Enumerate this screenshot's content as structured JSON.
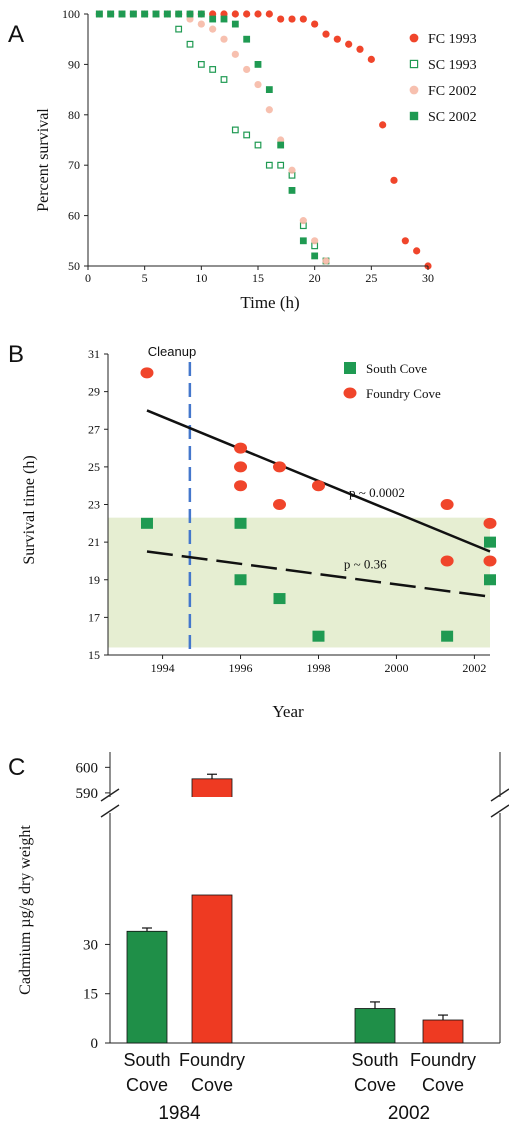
{
  "colors": {
    "fc_red": "#f0452b",
    "fc_light": "#f6b9a6",
    "sc_green": "#1f9a52",
    "band_green": "#e6eed2",
    "cleanup_blue": "#4477cc",
    "bar_green": "#1f8f48",
    "bar_red": "#ee3a22"
  },
  "chart_data": [
    {
      "panel": "A",
      "type": "scatter",
      "xlabel": "Time (h)",
      "ylabel": "Percent survival",
      "xlim": [
        0,
        30
      ],
      "ylim": [
        50,
        100
      ],
      "xticks": [
        0,
        5,
        10,
        15,
        20,
        25,
        30
      ],
      "yticks": [
        50,
        60,
        70,
        80,
        90,
        100
      ],
      "legend_position": "top-right",
      "series": [
        {
          "name": "FC 1993",
          "marker": "filled-circle",
          "points": [
            [
              1,
              100
            ],
            [
              2,
              100
            ],
            [
              3,
              100
            ],
            [
              4,
              100
            ],
            [
              5,
              100
            ],
            [
              6,
              100
            ],
            [
              7,
              100
            ],
            [
              8,
              100
            ],
            [
              9,
              100
            ],
            [
              10,
              100
            ],
            [
              11,
              100
            ],
            [
              12,
              100
            ],
            [
              13,
              100
            ],
            [
              14,
              100
            ],
            [
              15,
              100
            ],
            [
              16,
              100
            ],
            [
              17,
              99
            ],
            [
              18,
              99
            ],
            [
              19,
              99
            ],
            [
              20,
              98
            ],
            [
              21,
              96
            ],
            [
              22,
              95
            ],
            [
              23,
              94
            ],
            [
              24,
              93
            ],
            [
              25,
              91
            ],
            [
              26,
              78
            ],
            [
              27,
              67
            ],
            [
              28,
              55
            ],
            [
              29,
              53
            ],
            [
              30,
              50
            ]
          ]
        },
        {
          "name": "SC 1993",
          "marker": "open-square",
          "points": [
            [
              1,
              100
            ],
            [
              2,
              100
            ],
            [
              3,
              100
            ],
            [
              4,
              100
            ],
            [
              5,
              100
            ],
            [
              6,
              100
            ],
            [
              7,
              100
            ],
            [
              8,
              97
            ],
            [
              9,
              94
            ],
            [
              10,
              90
            ],
            [
              11,
              89
            ],
            [
              12,
              87
            ],
            [
              13,
              77
            ],
            [
              14,
              76
            ],
            [
              15,
              74
            ],
            [
              16,
              70
            ],
            [
              17,
              70
            ],
            [
              18,
              68
            ],
            [
              19,
              58
            ],
            [
              20,
              54
            ],
            [
              21,
              51
            ]
          ]
        },
        {
          "name": "FC 2002",
          "marker": "light-filled-circle",
          "points": [
            [
              1,
              100
            ],
            [
              2,
              100
            ],
            [
              3,
              100
            ],
            [
              4,
              100
            ],
            [
              5,
              100
            ],
            [
              6,
              100
            ],
            [
              7,
              100
            ],
            [
              8,
              100
            ],
            [
              9,
              99
            ],
            [
              10,
              98
            ],
            [
              11,
              97
            ],
            [
              12,
              95
            ],
            [
              13,
              92
            ],
            [
              14,
              89
            ],
            [
              15,
              86
            ],
            [
              16,
              81
            ],
            [
              17,
              75
            ],
            [
              18,
              69
            ],
            [
              19,
              59
            ],
            [
              20,
              55
            ],
            [
              21,
              51
            ]
          ]
        },
        {
          "name": "SC 2002",
          "marker": "filled-square",
          "points": [
            [
              1,
              100
            ],
            [
              2,
              100
            ],
            [
              3,
              100
            ],
            [
              4,
              100
            ],
            [
              5,
              100
            ],
            [
              6,
              100
            ],
            [
              7,
              100
            ],
            [
              8,
              100
            ],
            [
              9,
              100
            ],
            [
              10,
              100
            ],
            [
              11,
              99
            ],
            [
              12,
              99
            ],
            [
              13,
              98
            ],
            [
              14,
              95
            ],
            [
              15,
              90
            ],
            [
              16,
              85
            ],
            [
              17,
              74
            ],
            [
              18,
              65
            ],
            [
              19,
              55
            ],
            [
              20,
              52
            ]
          ]
        }
      ]
    },
    {
      "panel": "B",
      "type": "scatter",
      "xlabel": "Year",
      "ylabel": "Survival time (h)",
      "xlim": [
        1992.6,
        2002.4
      ],
      "ylim": [
        15,
        31
      ],
      "xticks": [
        1994,
        1996,
        1998,
        2000,
        2002
      ],
      "yticks": [
        15,
        17,
        19,
        21,
        23,
        25,
        27,
        29,
        31
      ],
      "legend_position": "top-right",
      "band": [
        15.4,
        22.3
      ],
      "cleanup_year": 1994.7,
      "cleanup_label": "Cleanup",
      "series": [
        {
          "name": "South Cove",
          "marker": "filled-square",
          "points": [
            [
              1993.6,
              22
            ],
            [
              1996,
              22
            ],
            [
              1996,
              19
            ],
            [
              1997,
              18
            ],
            [
              1998,
              16
            ],
            [
              2001.3,
              16
            ],
            [
              2002.4,
              21
            ],
            [
              2002.4,
              19
            ]
          ]
        },
        {
          "name": "Foundry Cove",
          "marker": "filled-circle",
          "points": [
            [
              1993.6,
              30
            ],
            [
              1996,
              26
            ],
            [
              1996,
              25
            ],
            [
              1996,
              24
            ],
            [
              1997,
              25
            ],
            [
              1997,
              23
            ],
            [
              1998,
              24
            ],
            [
              2001.3,
              23
            ],
            [
              2001.3,
              20
            ],
            [
              2002.4,
              22
            ],
            [
              2002.4,
              20
            ]
          ]
        }
      ],
      "trend_lines": [
        {
          "series": "Foundry Cove",
          "style": "solid",
          "from": [
            1993.6,
            28
          ],
          "to": [
            2002.4,
            20.5
          ],
          "label": "p ~ 0.0002",
          "label_at": [
            1999.5,
            23.4
          ]
        },
        {
          "series": "South Cove",
          "style": "dashed",
          "from": [
            1993.6,
            20.5
          ],
          "to": [
            2002.4,
            18.1
          ],
          "label": "p ~ 0.36",
          "label_at": [
            1999.2,
            19.6
          ]
        }
      ]
    },
    {
      "panel": "C",
      "type": "bar",
      "ylabel": "Cadmium µg/g dry weight",
      "axis_break": true,
      "lower_ylim": [
        0,
        42
      ],
      "lower_yticks": [
        0,
        15,
        30
      ],
      "upper_ylim": [
        588,
        606
      ],
      "upper_yticks": [
        590,
        600
      ],
      "groups": [
        {
          "label": "1984",
          "bars": [
            {
              "category": "South Cove",
              "line1": "South",
              "line2": "Cove",
              "value": 34,
              "error": 1,
              "color_key": "bar_green"
            },
            {
              "category": "Foundry Cove",
              "line1": "Foundry",
              "line2": "Cove",
              "value": 595.5,
              "error": 1.8,
              "color_key": "bar_red"
            }
          ]
        },
        {
          "label": "2002",
          "bars": [
            {
              "category": "South Cove",
              "line1": "South",
              "line2": "Cove",
              "value": 10.5,
              "error": 2,
              "color_key": "bar_green"
            },
            {
              "category": "Foundry Cove",
              "line1": "Foundry",
              "line2": "Cove",
              "value": 7,
              "error": 1.5,
              "color_key": "bar_red"
            }
          ]
        }
      ]
    }
  ]
}
